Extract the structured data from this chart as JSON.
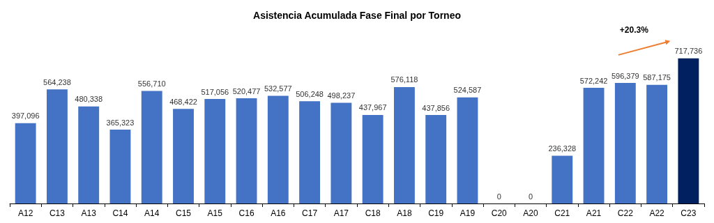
{
  "chart_data": {
    "type": "bar",
    "title": "Asistencia Acumulada Fase Final por Torneo",
    "categories": [
      "A12",
      "C13",
      "A13",
      "C14",
      "A14",
      "C15",
      "A15",
      "C16",
      "A16",
      "C17",
      "A17",
      "C18",
      "A18",
      "C19",
      "A19",
      "C20",
      "A20",
      "C21",
      "A21",
      "C22",
      "A22",
      "C23"
    ],
    "values": [
      397096,
      564238,
      480338,
      365323,
      556710,
      468422,
      517056,
      520477,
      532577,
      506248,
      498237,
      437967,
      576118,
      437856,
      524587,
      0,
      0,
      236328,
      572242,
      596379,
      587175,
      717736
    ],
    "colors": [
      "#4472c4",
      "#4472c4",
      "#4472c4",
      "#4472c4",
      "#4472c4",
      "#4472c4",
      "#4472c4",
      "#4472c4",
      "#4472c4",
      "#4472c4",
      "#4472c4",
      "#4472c4",
      "#4472c4",
      "#4472c4",
      "#4472c4",
      "#4472c4",
      "#4472c4",
      "#4472c4",
      "#4472c4",
      "#4472c4",
      "#4472c4",
      "#002060"
    ],
    "value_labels": [
      "397,096",
      "564,238",
      "480,338",
      "365,323",
      "556,710",
      "468,422",
      "517,056",
      "520,477",
      "532,577",
      "506,248",
      "498,237",
      "437,967",
      "576,118",
      "437,856",
      "524,587",
      "0",
      "0",
      "236,328",
      "572,242",
      "596,379",
      "587,175",
      "717,736"
    ],
    "tick_labels": "x",
    "annotations": [
      "+20.3%"
    ]
  }
}
